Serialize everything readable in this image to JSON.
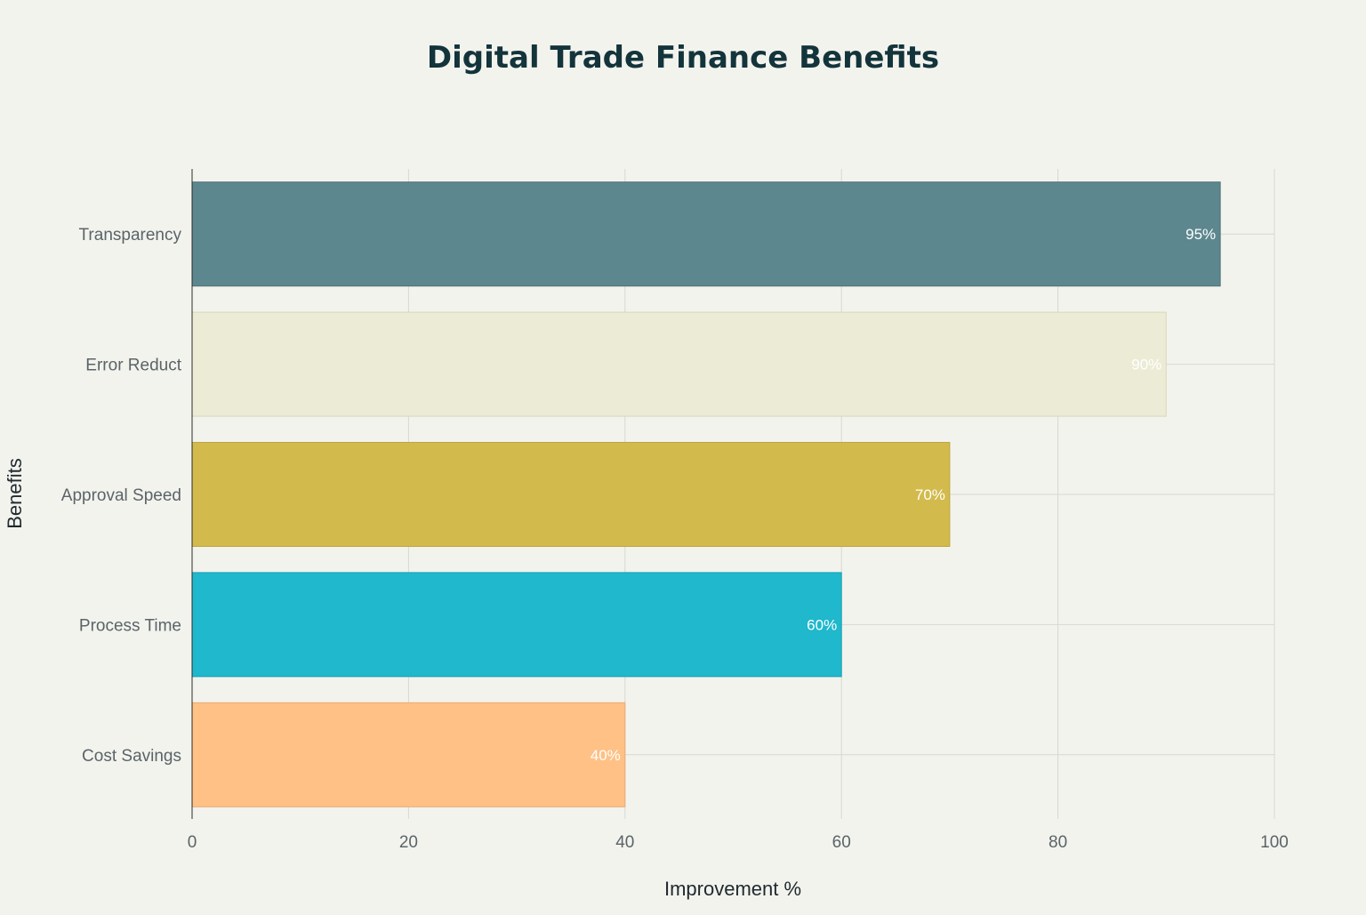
{
  "chart_data": {
    "type": "bar",
    "orientation": "horizontal",
    "title": "Digital Trade Finance Benefits",
    "xlabel": "Improvement %",
    "ylabel": "Benefits",
    "xlim": [
      0,
      100
    ],
    "x_ticks": [
      0,
      20,
      40,
      60,
      80,
      100
    ],
    "grid": true,
    "categories": [
      "Transparency",
      "Error Reduct",
      "Approval Speed",
      "Process Time",
      "Cost Savings"
    ],
    "values": [
      95,
      90,
      70,
      60,
      40
    ],
    "data_labels": [
      "95%",
      "90%",
      "70%",
      "60%",
      "40%"
    ],
    "colors": [
      "#5d878f",
      "#ecebd5",
      "#d2ba4c",
      "#1fb8cd",
      "#ffc185"
    ],
    "bar_border_colors": [
      "#4f7379",
      "#d8d6bd",
      "#bda73f",
      "#1a9fb2",
      "#e9ab70"
    ]
  }
}
